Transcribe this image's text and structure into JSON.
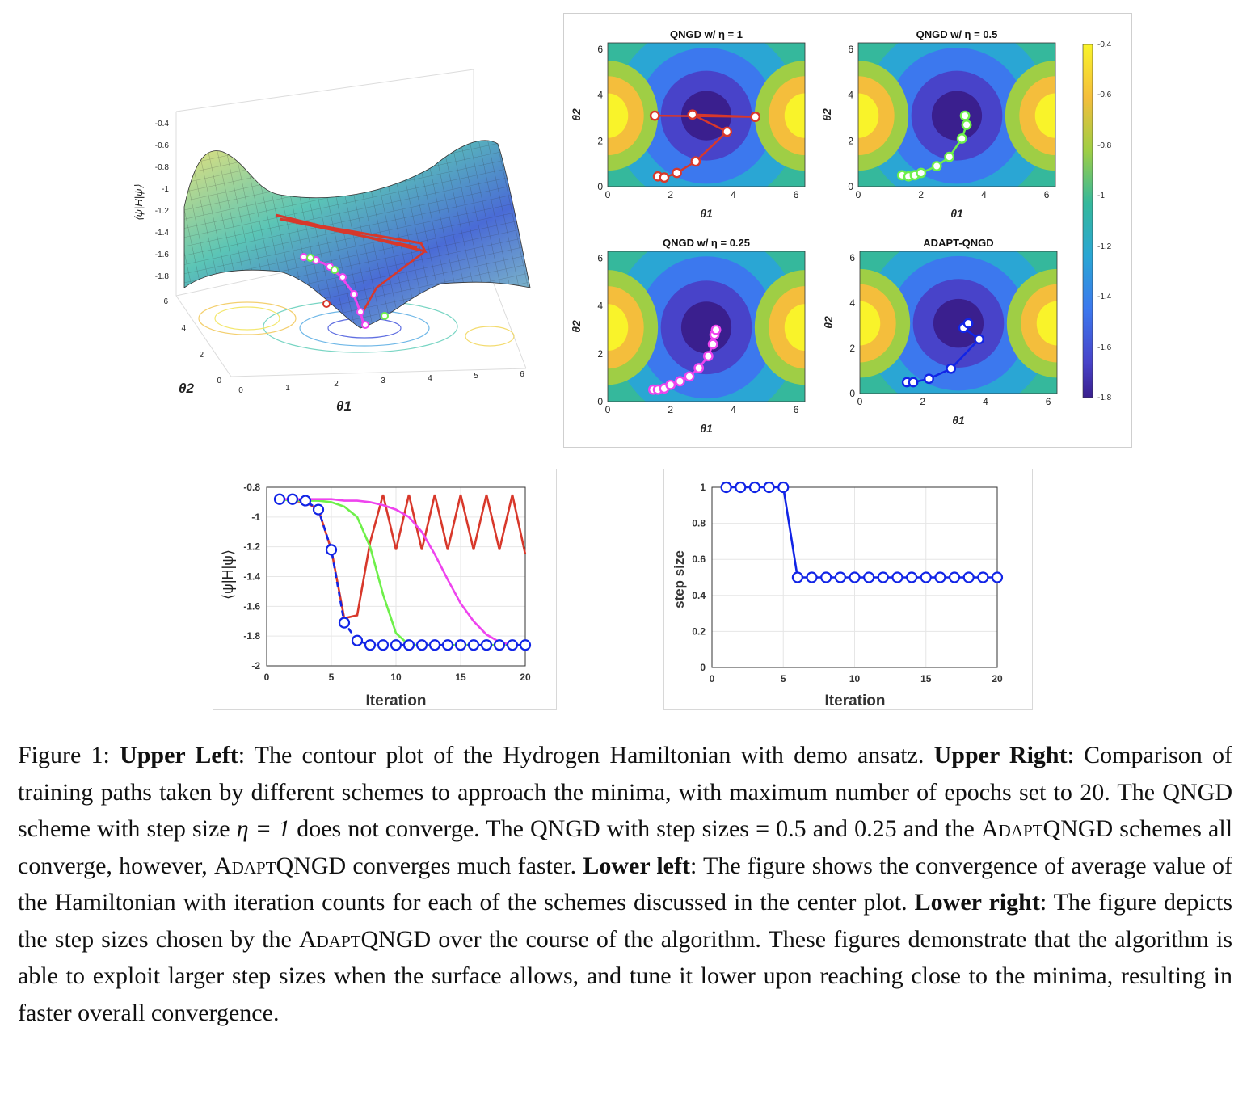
{
  "figure": {
    "upper_left": {
      "zlabel": "⟨ψ|H|ψ⟩",
      "xlabel": "θ1",
      "ylabel": "θ2",
      "zticks": [
        "-0.4",
        "-0.6",
        "-0.8",
        "-1",
        "-1.2",
        "-1.4",
        "-1.6",
        "-1.8"
      ],
      "xticks": [
        "0",
        "1",
        "2",
        "3",
        "4",
        "5",
        "6"
      ],
      "yticks": [
        "0",
        "2",
        "4",
        "6"
      ]
    },
    "upper_right": {
      "subplots": [
        {
          "title": "QNGD w/ η = 1",
          "color": "#d8382b"
        },
        {
          "title": "QNGD w/ η = 0.5",
          "color": "#6ef04a"
        },
        {
          "title": "QNGD w/ η = 0.25",
          "color": "#ee44ee"
        },
        {
          "title": "ADAPT-QNGD",
          "color": "#1124e6"
        }
      ],
      "xlabel": "θ1",
      "ylabel": "θ2",
      "ticks": [
        "0",
        "2",
        "4",
        "6"
      ],
      "colorbar_ticks": [
        "-0.4",
        "-0.6",
        "-0.8",
        "-1",
        "-1.2",
        "-1.4",
        "-1.6",
        "-1.8"
      ]
    }
  },
  "chart_data": [
    {
      "type": "line",
      "xlabel": "Iteration",
      "ylabel": "⟨ψ|H|ψ⟩",
      "xlim": [
        0,
        20
      ],
      "ylim": [
        -2,
        -0.8
      ],
      "xticks": [
        0,
        5,
        10,
        15,
        20
      ],
      "yticks": [
        -0.8,
        -1,
        -1.2,
        -1.4,
        -1.6,
        -1.8,
        -2
      ],
      "x": [
        1,
        2,
        3,
        4,
        5,
        6,
        7,
        8,
        9,
        10,
        11,
        12,
        13,
        14,
        15,
        16,
        17,
        18,
        19,
        20
      ],
      "series": [
        {
          "color": "#d8382b",
          "values": [
            -0.88,
            -0.89,
            -0.9,
            -0.95,
            -1.22,
            -1.68,
            -1.66,
            -1.17,
            -0.85,
            -1.22,
            -0.85,
            -1.22,
            -0.85,
            -1.22,
            -0.85,
            -1.22,
            -0.85,
            -1.22,
            -0.85,
            -1.25
          ]
        },
        {
          "color": "#6ef04a",
          "values": [
            -0.88,
            -0.89,
            -0.89,
            -0.89,
            -0.9,
            -0.93,
            -1.0,
            -1.2,
            -1.52,
            -1.78,
            -1.86,
            -1.86,
            -1.86,
            -1.86,
            -1.86,
            -1.86,
            -1.86,
            -1.86,
            -1.86,
            -1.86
          ]
        },
        {
          "color": "#ee44ee",
          "values": [
            -0.88,
            -0.88,
            -0.88,
            -0.88,
            -0.88,
            -0.89,
            -0.89,
            -0.9,
            -0.92,
            -0.95,
            -1.0,
            -1.1,
            -1.25,
            -1.42,
            -1.58,
            -1.7,
            -1.79,
            -1.84,
            -1.86,
            -1.86
          ]
        },
        {
          "color": "#1124e6",
          "values": [
            -0.88,
            -0.88,
            -0.89,
            -0.95,
            -1.22,
            -1.71,
            -1.83,
            -1.86,
            -1.86,
            -1.86,
            -1.86,
            -1.86,
            -1.86,
            -1.86,
            -1.86,
            -1.86,
            -1.86,
            -1.86,
            -1.86,
            -1.86
          ]
        }
      ]
    },
    {
      "type": "line",
      "xlabel": "Iteration",
      "ylabel": "step size",
      "xlim": [
        0,
        20
      ],
      "ylim": [
        0,
        1
      ],
      "xticks": [
        0,
        5,
        10,
        15,
        20
      ],
      "yticks": [
        0,
        0.2,
        0.4,
        0.6,
        0.8,
        1
      ],
      "x": [
        1,
        2,
        3,
        4,
        5,
        6,
        7,
        8,
        9,
        10,
        11,
        12,
        13,
        14,
        15,
        16,
        17,
        18,
        19,
        20
      ],
      "series": [
        {
          "color": "#1124e6",
          "values": [
            1,
            1,
            1,
            1,
            1,
            0.5,
            0.5,
            0.5,
            0.5,
            0.5,
            0.5,
            0.5,
            0.5,
            0.5,
            0.5,
            0.5,
            0.5,
            0.5,
            0.5,
            0.5
          ]
        }
      ]
    }
  ],
  "caption": {
    "figure_label": "Figure 1:",
    "s1_head": "Upper Left",
    "s1_text": ": The contour plot of the Hydrogen Hamiltonian with demo ansatz.",
    "s2_head": "Upper Right",
    "s2_text_a": ": Comparison of training paths taken by different schemes to approach the minima, with maximum number of epochs set to 20. The QNGD scheme with step size",
    "eq1": "η = 1",
    "s2_text_b": "does not converge. The QNGD with step sizes = 0.5 and 0.25 and the",
    "adapt1": "Adapt",
    "qngd1": "QNGD",
    "s2_text_c": "schemes all converge, however,",
    "adapt2": "Adapt",
    "qngd2": "QNGD",
    "s2_text_d": "converges much faster.",
    "s3_head": "Lower left",
    "s3_text": ": The figure shows the convergence of average value of the Hamiltonian with iteration counts for each of the schemes discussed in the center plot.",
    "s4_head": "Lower right",
    "s4_text_a": ": The figure depicts the step sizes chosen by the",
    "adapt3": "Adapt",
    "qngd3": "QNGD",
    "s4_text_b": "over the course of the algorithm. These figures demonstrate that the algorithm is able to exploit larger step sizes when the surface allows, and tune it lower upon reaching close to the minima, resulting in faster overall convergence."
  }
}
